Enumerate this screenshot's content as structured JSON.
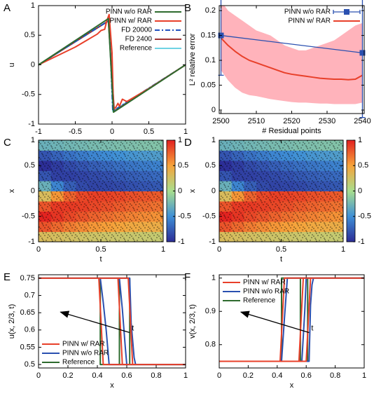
{
  "chart_data": [
    {
      "type": "line",
      "label": "A",
      "xlabel": "x",
      "ylabel": "u",
      "xlim": [
        -1,
        1
      ],
      "ylim": [
        -1,
        1
      ],
      "xticks": [
        -1,
        -0.5,
        0,
        0.5,
        1
      ],
      "yticks": [
        -1,
        -0.5,
        0,
        0.5,
        1
      ],
      "legend": "upper right",
      "series": [
        {
          "name": "PINN w/o RAR",
          "color": "#2e6b2e",
          "x": [
            -1,
            -0.05,
            0.02,
            1
          ],
          "values": [
            0,
            0.78,
            -0.8,
            0
          ]
        },
        {
          "name": "PINN w/ RAR",
          "color": "#e8402a",
          "x": [
            -1,
            -0.5,
            -0.2,
            -0.15,
            -0.1,
            -0.07,
            -0.04,
            0.0,
            0.02,
            0.05,
            0.08,
            0.1,
            0.14,
            0.2,
            0.5,
            1
          ],
          "values": [
            0,
            0.3,
            0.52,
            0.58,
            0.6,
            0.75,
            0.85,
            0.2,
            -0.75,
            -0.72,
            -0.65,
            -0.7,
            -0.58,
            -0.62,
            -0.4,
            0
          ]
        },
        {
          "name": "FD 20000",
          "color": "#1f4fbf",
          "style": "dashdot",
          "x": [
            -1,
            -0.04,
            0.01,
            1
          ],
          "values": [
            0,
            0.75,
            -0.78,
            0
          ]
        },
        {
          "name": "FD 2400",
          "color": "#9e3030",
          "x": [
            -1,
            -0.05,
            0.03,
            1
          ],
          "values": [
            0,
            0.74,
            -0.78,
            0
          ]
        },
        {
          "name": "Reference",
          "color": "#6fd3e3",
          "x": [
            -1,
            -0.04,
            0.01,
            1
          ],
          "values": [
            0,
            0.75,
            -0.78,
            0
          ]
        }
      ]
    },
    {
      "type": "line",
      "label": "B",
      "xlabel": "# Residual points",
      "ylabel": "L² relative error",
      "xlim": [
        2499.5,
        2540.5
      ],
      "ylim": [
        -0.007,
        0.21
      ],
      "xticks": [
        2500,
        2510,
        2520,
        2530,
        2540
      ],
      "yticks": [
        0,
        0.05,
        0.1,
        0.15,
        0.2
      ],
      "legend": "upper right",
      "series": [
        {
          "name": "PINN w/o RAR",
          "color": "#2a50b0",
          "marker": "square",
          "x": [
            2500,
            2540
          ],
          "values": [
            0.15,
            0.115
          ],
          "errors": [
            0.08,
            0.13
          ]
        },
        {
          "name": "PINN w/ RAR",
          "color": "#e8402a",
          "band_color": "#ffb3bb",
          "x": [
            2500,
            2502,
            2504,
            2506,
            2508,
            2510,
            2512,
            2514,
            2516,
            2518,
            2520,
            2522,
            2524,
            2526,
            2528,
            2530,
            2532,
            2534,
            2536,
            2538,
            2540
          ],
          "values": [
            0.145,
            0.13,
            0.118,
            0.108,
            0.1,
            0.095,
            0.09,
            0.085,
            0.08,
            0.075,
            0.072,
            0.07,
            0.068,
            0.066,
            0.064,
            0.063,
            0.062,
            0.062,
            0.061,
            0.062,
            0.07
          ],
          "lower": [
            0.08,
            0.06,
            0.045,
            0.035,
            0.03,
            0.028,
            0.025,
            0.022,
            0.02,
            0.018,
            0.016,
            0.015,
            0.015,
            0.014,
            0.013,
            0.013,
            0.012,
            0.012,
            0.012,
            0.012,
            0.015
          ],
          "upper": [
            0.22,
            0.2,
            0.19,
            0.18,
            0.17,
            0.16,
            0.155,
            0.15,
            0.14,
            0.13,
            0.125,
            0.12,
            0.12,
            0.125,
            0.13,
            0.135,
            0.14,
            0.15,
            0.16,
            0.17,
            0.175
          ]
        }
      ]
    },
    {
      "type": "heatmap",
      "label": "C",
      "xlabel": "t",
      "ylabel": "x",
      "xlim": [
        0,
        1
      ],
      "ylim": [
        -1,
        1
      ],
      "xticks": [
        0,
        0.5,
        1
      ],
      "yticks": [
        -1,
        -0.5,
        0,
        0.5,
        1
      ],
      "zlim": [
        -1,
        1
      ],
      "zticks": [
        1,
        0.5,
        0,
        -0.5,
        -1
      ],
      "colormap": [
        "#2c2c96",
        "#3f8fd6",
        "#a8de8e",
        "#f6a33a",
        "#e2201f"
      ],
      "z": [
        [
          0.3,
          0.28,
          0.26,
          0.25,
          0.23,
          0.22,
          0.21,
          0.2,
          0.19,
          0.18
        ],
        [
          0.8,
          0.72,
          0.65,
          0.6,
          0.55,
          0.52,
          0.49,
          0.46,
          0.44,
          0.42
        ],
        [
          0.99,
          0.92,
          0.85,
          0.8,
          0.75,
          0.7,
          0.66,
          0.63,
          0.6,
          0.57
        ],
        [
          0.8,
          0.9,
          0.9,
          0.88,
          0.85,
          0.82,
          0.78,
          0.75,
          0.72,
          0.69
        ],
        [
          0.3,
          0.55,
          0.75,
          0.85,
          0.88,
          0.87,
          0.85,
          0.82,
          0.8,
          0.78
        ],
        [
          -0.3,
          -0.55,
          -0.75,
          -0.85,
          -0.88,
          -0.87,
          -0.85,
          -0.82,
          -0.8,
          -0.78
        ],
        [
          -0.8,
          -0.9,
          -0.9,
          -0.88,
          -0.85,
          -0.82,
          -0.78,
          -0.75,
          -0.72,
          -0.69
        ],
        [
          -0.99,
          -0.92,
          -0.85,
          -0.8,
          -0.75,
          -0.7,
          -0.66,
          -0.63,
          -0.6,
          -0.57
        ],
        [
          -0.8,
          -0.72,
          -0.65,
          -0.6,
          -0.55,
          -0.52,
          -0.49,
          -0.46,
          -0.44,
          -0.42
        ],
        [
          -0.3,
          -0.28,
          -0.26,
          -0.25,
          -0.23,
          -0.22,
          -0.21,
          -0.2,
          -0.19,
          -0.18
        ]
      ]
    },
    {
      "type": "heatmap",
      "label": "D",
      "xlabel": "t",
      "ylabel": "x",
      "xlim": [
        0,
        1
      ],
      "ylim": [
        -1,
        1
      ],
      "xticks": [
        0,
        0.5,
        1
      ],
      "yticks": [
        -1,
        -0.5,
        0,
        0.5,
        1
      ],
      "zlim": [
        -1,
        1
      ],
      "zticks": [
        1,
        0.5,
        0,
        -0.5,
        -1
      ],
      "colormap": [
        "#2c2c96",
        "#3f8fd6",
        "#a8de8e",
        "#f6a33a",
        "#e2201f"
      ],
      "z": [
        [
          0.3,
          0.28,
          0.26,
          0.25,
          0.23,
          0.22,
          0.21,
          0.2,
          0.19,
          0.18
        ],
        [
          0.8,
          0.72,
          0.65,
          0.6,
          0.55,
          0.52,
          0.49,
          0.46,
          0.44,
          0.42
        ],
        [
          0.99,
          0.92,
          0.85,
          0.8,
          0.75,
          0.7,
          0.66,
          0.63,
          0.6,
          0.57
        ],
        [
          0.8,
          0.9,
          0.9,
          0.88,
          0.85,
          0.82,
          0.78,
          0.75,
          0.72,
          0.69
        ],
        [
          0.3,
          0.55,
          0.75,
          0.85,
          0.88,
          0.87,
          0.85,
          0.82,
          0.8,
          0.78
        ],
        [
          -0.3,
          -0.55,
          -0.75,
          -0.85,
          -0.88,
          -0.87,
          -0.85,
          -0.82,
          -0.8,
          -0.78
        ],
        [
          -0.8,
          -0.9,
          -0.9,
          -0.88,
          -0.85,
          -0.82,
          -0.78,
          -0.75,
          -0.72,
          -0.69
        ],
        [
          -0.99,
          -0.92,
          -0.85,
          -0.8,
          -0.75,
          -0.7,
          -0.66,
          -0.63,
          -0.6,
          -0.57
        ],
        [
          -0.8,
          -0.72,
          -0.65,
          -0.6,
          -0.55,
          -0.52,
          -0.49,
          -0.46,
          -0.44,
          -0.42
        ],
        [
          -0.3,
          -0.28,
          -0.26,
          -0.25,
          -0.23,
          -0.22,
          -0.21,
          -0.2,
          -0.19,
          -0.18
        ]
      ]
    },
    {
      "type": "line",
      "label": "E",
      "xlabel": "x",
      "ylabel": "u(x, 2/3, t)",
      "xlim": [
        0,
        1
      ],
      "ylim": [
        0.49,
        0.76
      ],
      "xticks": [
        0,
        0.2,
        0.4,
        0.6,
        0.8,
        1
      ],
      "yticks": [
        0.5,
        0.55,
        0.6,
        0.65,
        0.7,
        0.75
      ],
      "legend": "lower left",
      "annotation": "t",
      "series": [
        {
          "name": "PINN w/ RAR",
          "color": "#e8402a",
          "x": [
            0,
            0.41,
            0.44,
            1,
            null,
            0,
            0.54,
            0.57,
            1,
            null,
            0,
            0.61,
            0.64,
            1
          ],
          "values": [
            0.75,
            0.75,
            0.5,
            0.5,
            null,
            0.75,
            0.75,
            0.5,
            0.5,
            null,
            0.75,
            0.75,
            0.5,
            0.5
          ]
        },
        {
          "name": "PINN w/o RAR",
          "color": "#2a50b0",
          "x": [
            0,
            0.42,
            0.44,
            0.46,
            0.48,
            1,
            null,
            0,
            0.55,
            0.57,
            0.59,
            0.6,
            1,
            null,
            0,
            0.62,
            0.63,
            0.65,
            0.66,
            1
          ],
          "values": [
            0.75,
            0.75,
            0.68,
            0.6,
            0.5,
            0.5,
            null,
            0.75,
            0.75,
            0.66,
            0.55,
            0.5,
            0.5,
            null,
            0.75,
            0.75,
            0.62,
            0.52,
            0.5,
            0.5
          ]
        },
        {
          "name": "Reference",
          "color": "#2e6b2e",
          "x": [
            0,
            0.42,
            0.42,
            1,
            null,
            0,
            0.55,
            0.55,
            1,
            null,
            0,
            0.62,
            0.62,
            1
          ],
          "values": [
            0.75,
            0.75,
            0.5,
            0.5,
            null,
            0.75,
            0.75,
            0.5,
            0.5,
            null,
            0.75,
            0.75,
            0.5,
            0.5
          ]
        }
      ]
    },
    {
      "type": "line",
      "label": "F",
      "xlabel": "x",
      "ylabel": "v(x, 2/3, t)",
      "xlim": [
        0,
        1
      ],
      "ylim": [
        0.73,
        1.01
      ],
      "xticks": [
        0,
        0.2,
        0.4,
        0.6,
        0.8,
        1
      ],
      "yticks": [
        0.8,
        0.9,
        1
      ],
      "legend": "upper left",
      "annotation": "t",
      "series": [
        {
          "name": "PINN w/ RAR",
          "color": "#e8402a",
          "x": [
            0,
            0.42,
            0.45,
            1,
            null,
            0,
            0.55,
            0.58,
            1,
            null,
            0,
            0.6,
            0.63,
            1
          ],
          "values": [
            0.75,
            0.75,
            1,
            1,
            null,
            0.75,
            0.75,
            1,
            1,
            null,
            0.75,
            0.75,
            1,
            1
          ]
        },
        {
          "name": "PINN w/o RAR",
          "color": "#2a50b0",
          "x": [
            0,
            0.43,
            0.45,
            0.47,
            1,
            null,
            0,
            0.57,
            0.59,
            0.6,
            1,
            null,
            0,
            0.62,
            0.63,
            0.64,
            0.65,
            1
          ],
          "values": [
            0.75,
            0.75,
            0.88,
            1,
            1,
            null,
            0.75,
            0.75,
            0.9,
            1,
            1,
            null,
            0.75,
            0.75,
            0.92,
            0.98,
            1,
            1
          ]
        },
        {
          "name": "Reference",
          "color": "#2e6b2e",
          "x": [
            0,
            0.43,
            0.43,
            1,
            null,
            0,
            0.56,
            0.56,
            1,
            null,
            0,
            0.61,
            0.61,
            1
          ],
          "values": [
            0.75,
            0.75,
            1,
            1,
            null,
            0.75,
            0.75,
            1,
            1,
            null,
            0.75,
            0.75,
            1,
            1
          ]
        }
      ]
    }
  ]
}
